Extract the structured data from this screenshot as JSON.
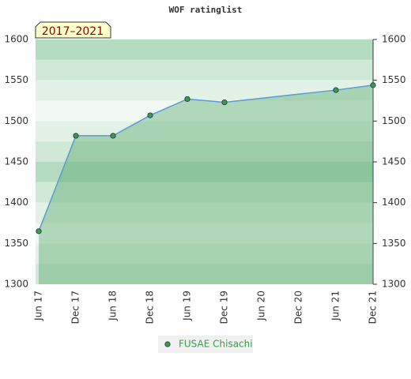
{
  "chart_data": {
    "type": "line",
    "title": "WOF ratinglist",
    "annotation": "2017–2021",
    "categories": [
      "Jun 17",
      "Dec 17",
      "Jun 18",
      "Dec 18",
      "Jun 19",
      "Dec 19",
      "Jun 20",
      "Dec 20",
      "Jun 21",
      "Dec 21"
    ],
    "series": [
      {
        "name": "FUSAE Chisachi",
        "color": "#5b9bd5",
        "marker_color": "#3c9a50",
        "x": [
          "Jun 17",
          "Dec 17",
          "Jun 18",
          "Dec 18",
          "Jun 19",
          "Dec 19",
          "Jun 21",
          "Dec 21"
        ],
        "values": [
          1365,
          1482,
          1482,
          1507,
          1527,
          1523,
          1538,
          1544
        ]
      }
    ],
    "ylim": [
      1300,
      1600
    ],
    "yticks": [
      1300,
      1350,
      1400,
      1450,
      1500,
      1550,
      1600
    ],
    "grid": true,
    "legend": "bottom"
  }
}
